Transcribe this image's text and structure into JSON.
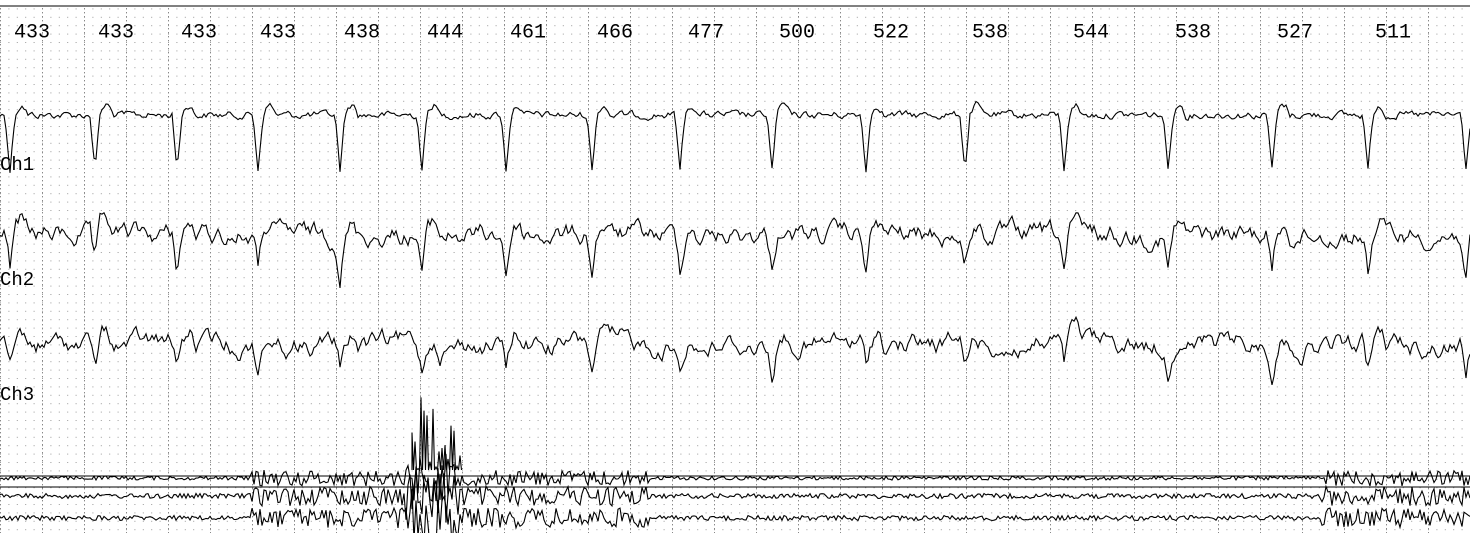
{
  "intervals": [
    433,
    433,
    433,
    433,
    438,
    444,
    461,
    466,
    477,
    500,
    522,
    538,
    544,
    538,
    527,
    511
  ],
  "channels": [
    "Ch1",
    "Ch2",
    "Ch3"
  ]
}
